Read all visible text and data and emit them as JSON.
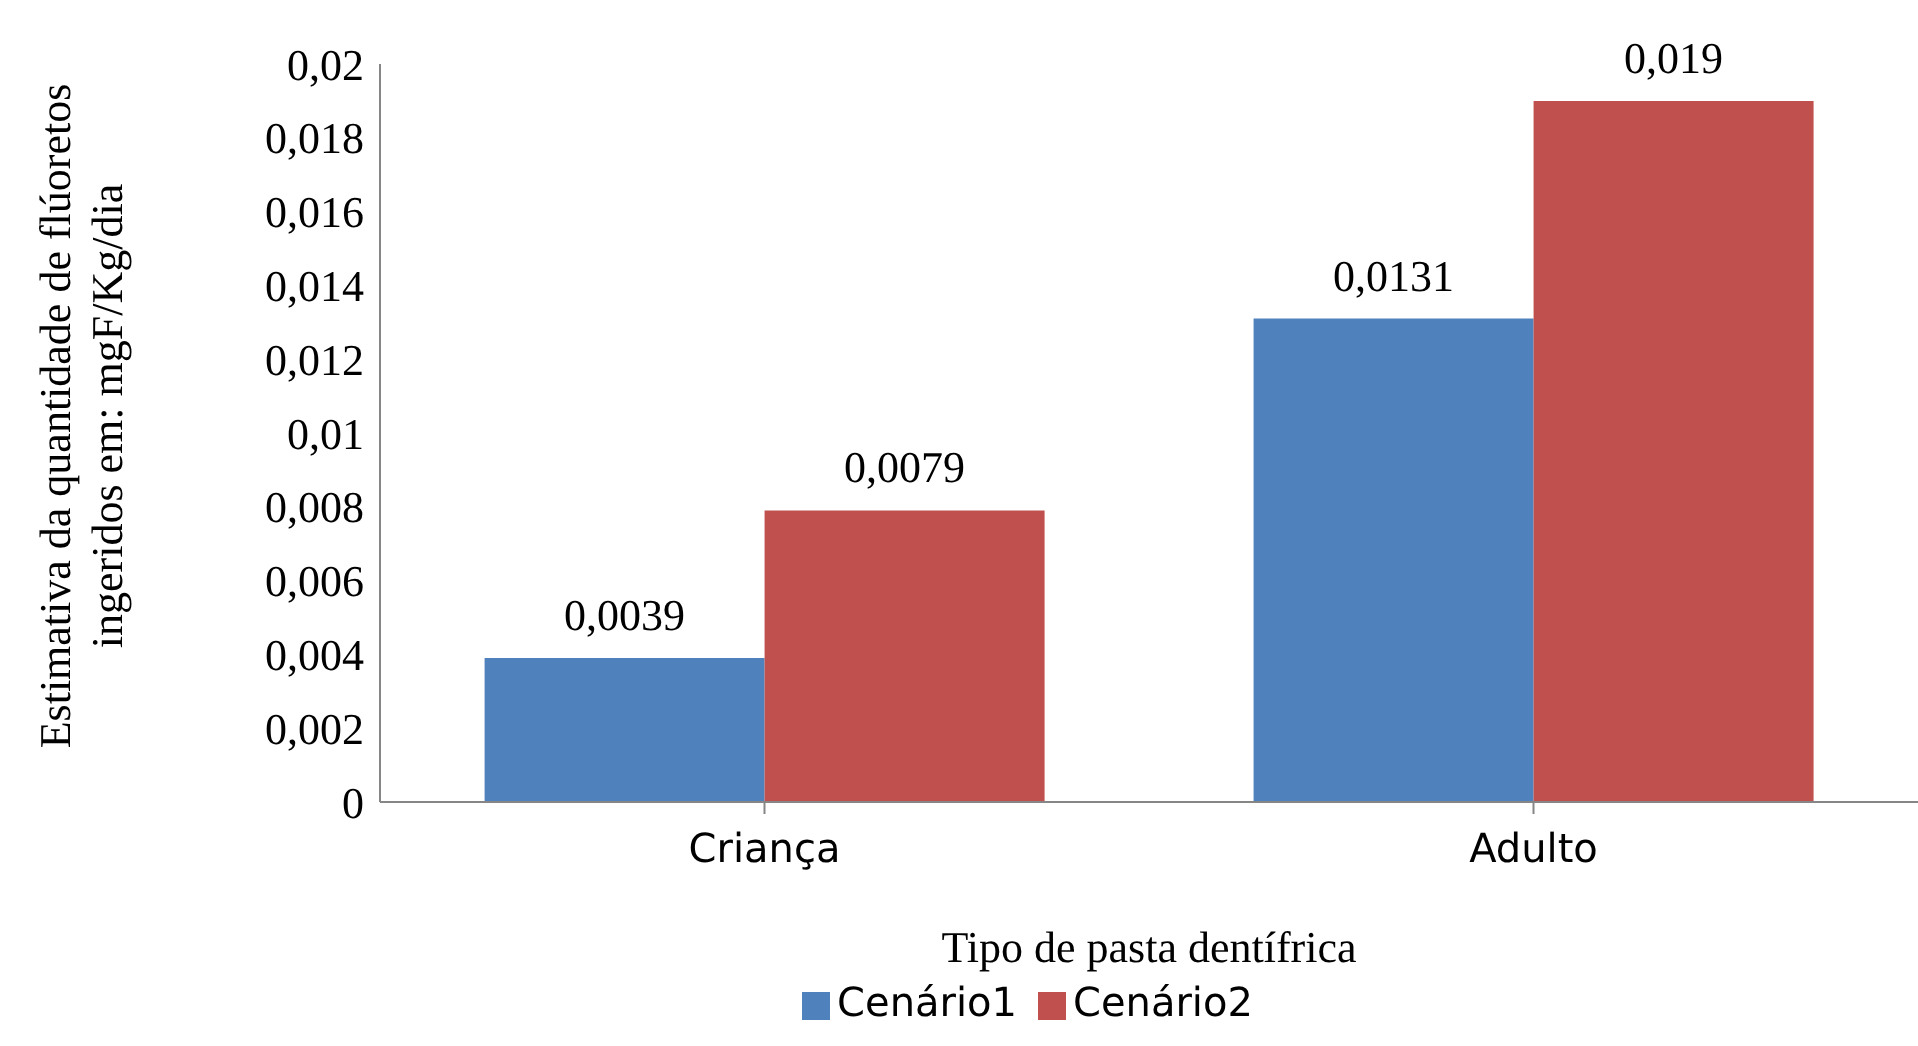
{
  "chart_data": {
    "type": "bar",
    "xlabel": "Tipo de pasta dentífrica",
    "ylabel": "Estimativa da quantidade de flúoretos ingeridos em: mgF/Kg/dia",
    "categories": [
      "Criança",
      "Adulto"
    ],
    "series": [
      {
        "name": "Cenário1",
        "color": "#4f81bd",
        "values": [
          0.0039,
          0.0131
        ],
        "value_labels": [
          "0,0039",
          "0,0131"
        ]
      },
      {
        "name": "Cenário2",
        "color": "#c0504d",
        "values": [
          0.0079,
          0.019
        ],
        "value_labels": [
          "0,0079",
          "0,019"
        ]
      }
    ],
    "ylim": [
      0,
      0.02
    ],
    "yticks": [
      {
        "value": 0,
        "label": "0"
      },
      {
        "value": 0.002,
        "label": "0,002"
      },
      {
        "value": 0.004,
        "label": "0,004"
      },
      {
        "value": 0.006,
        "label": "0,006"
      },
      {
        "value": 0.008,
        "label": "0,008"
      },
      {
        "value": 0.01,
        "label": "0,01"
      },
      {
        "value": 0.012,
        "label": "0,012"
      },
      {
        "value": 0.014,
        "label": "0,014"
      },
      {
        "value": 0.016,
        "label": "0,016"
      },
      {
        "value": 0.018,
        "label": "0,018"
      },
      {
        "value": 0.02,
        "label": "0,02"
      }
    ],
    "grid": false,
    "legend": "bottom"
  }
}
